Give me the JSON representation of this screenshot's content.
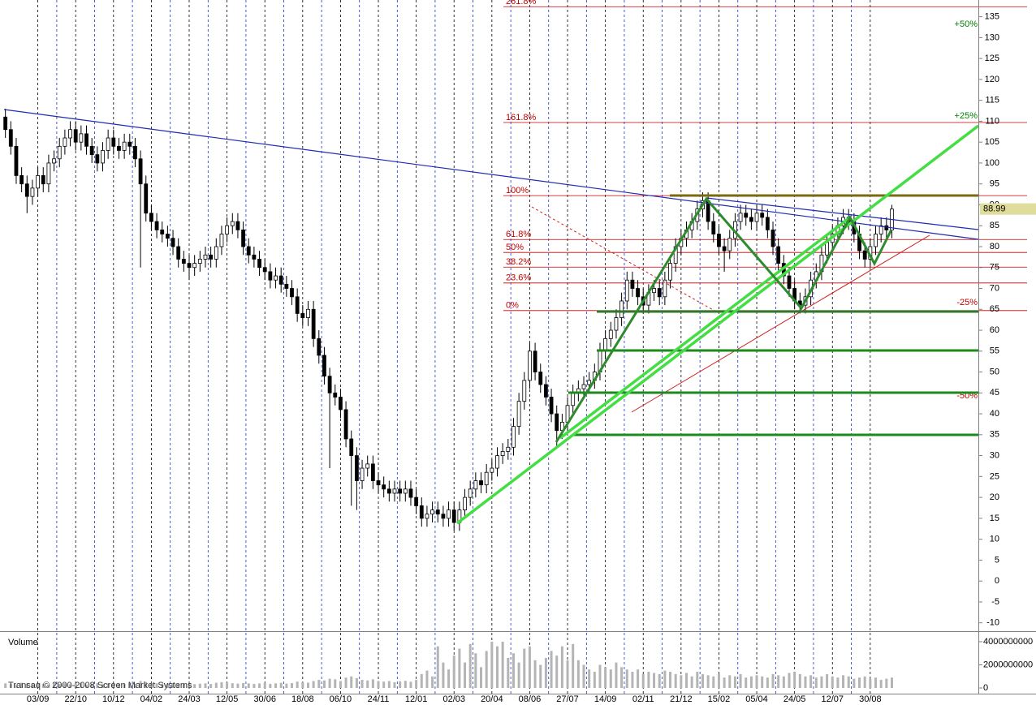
{
  "chart_data": {
    "type": "candlestick",
    "xlim": [
      -1,
      180
    ],
    "xticks": [
      {
        "value": 6,
        "label": "03/09"
      },
      {
        "value": 13,
        "label": "22/10"
      },
      {
        "value": 20,
        "label": "10/12"
      },
      {
        "value": 27,
        "label": "04/02"
      },
      {
        "value": 34,
        "label": "24/03"
      },
      {
        "value": 41,
        "label": "12/05"
      },
      {
        "value": 48,
        "label": "30/06"
      },
      {
        "value": 55,
        "label": "18/08"
      },
      {
        "value": 62,
        "label": "06/10"
      },
      {
        "value": 69,
        "label": "24/11"
      },
      {
        "value": 76,
        "label": "12/01"
      },
      {
        "value": 83,
        "label": "02/03"
      },
      {
        "value": 90,
        "label": "20/04"
      },
      {
        "value": 97,
        "label": "08/06"
      },
      {
        "value": 104,
        "label": "27/07"
      },
      {
        "value": 111,
        "label": "14/09"
      },
      {
        "value": 118,
        "label": "02/11"
      },
      {
        "value": 125,
        "label": "21/12"
      },
      {
        "value": 132,
        "label": "15/02"
      },
      {
        "value": 139,
        "label": "05/04"
      },
      {
        "value": 146,
        "label": "24/05"
      },
      {
        "value": 153,
        "label": "12/07"
      },
      {
        "value": 160,
        "label": "30/08"
      }
    ],
    "ylim": [
      -12,
      139
    ],
    "yticks": [
      -10,
      -5,
      0,
      5,
      10,
      15,
      20,
      25,
      30,
      35,
      40,
      45,
      50,
      55,
      60,
      65,
      70,
      75,
      80,
      85,
      90,
      95,
      100,
      105,
      110,
      115,
      120,
      125,
      130,
      135
    ],
    "up_color": "#ffffff",
    "down_color": "#000000",
    "open": [
      111,
      108,
      104,
      97,
      95,
      92,
      94,
      97,
      95,
      100,
      101,
      104,
      106,
      108,
      105,
      107,
      104,
      102,
      100,
      103,
      106,
      104,
      103,
      105,
      104,
      101,
      95,
      88,
      86,
      84,
      83,
      82,
      80,
      77,
      76,
      75,
      76,
      77,
      78,
      77,
      80,
      83,
      85,
      86,
      84,
      80,
      78,
      77,
      75,
      74,
      72,
      73,
      71,
      70,
      68,
      64,
      63,
      65,
      58,
      54,
      49,
      45,
      44,
      41,
      34,
      30,
      24,
      27,
      28,
      24,
      23,
      22,
      21,
      22,
      21,
      22,
      20,
      18,
      15,
      16,
      17,
      16,
      15,
      17,
      14,
      17,
      20,
      22,
      24,
      23,
      26,
      27,
      30,
      31,
      32,
      37,
      43,
      48,
      55,
      50,
      47,
      44,
      40,
      36,
      38,
      42,
      45,
      46,
      47,
      48,
      50,
      55,
      58,
      60,
      63,
      67,
      72,
      70,
      68,
      66,
      69,
      70,
      68,
      72,
      76,
      80,
      82,
      84,
      86,
      89,
      91,
      86,
      83,
      80,
      79,
      82,
      86,
      88,
      87,
      86,
      88,
      87,
      84,
      80,
      76,
      73,
      70,
      67,
      66,
      68,
      72,
      74,
      78,
      81,
      83,
      85,
      87,
      86,
      83,
      79,
      77,
      80,
      83,
      85,
      84
    ],
    "high": [
      113,
      110,
      106,
      99,
      97,
      96,
      99,
      99,
      102,
      103,
      106,
      108,
      110,
      110,
      109,
      109,
      106,
      104,
      105,
      108,
      108,
      106,
      107,
      107,
      106,
      103,
      97,
      90,
      88,
      86,
      85,
      84,
      82,
      79,
      78,
      78,
      79,
      80,
      80,
      82,
      85,
      87,
      88,
      88,
      86,
      82,
      80,
      79,
      77,
      76,
      75,
      75,
      73,
      72,
      70,
      66,
      67,
      67,
      60,
      56,
      51,
      47,
      46,
      43,
      36,
      32,
      29,
      30,
      30,
      26,
      25,
      24,
      24,
      24,
      24,
      24,
      22,
      20,
      18,
      19,
      19,
      18,
      19,
      19,
      19,
      22,
      24,
      26,
      26,
      28,
      29,
      32,
      33,
      34,
      39,
      45,
      50,
      57,
      57,
      52,
      49,
      46,
      42,
      40,
      44,
      47,
      48,
      49,
      50,
      52,
      57,
      60,
      62,
      65,
      69,
      74,
      74,
      72,
      70,
      71,
      72,
      72,
      74,
      78,
      82,
      84,
      86,
      88,
      91,
      93,
      93,
      88,
      85,
      82,
      84,
      88,
      90,
      90,
      89,
      90,
      90,
      89,
      86,
      82,
      78,
      75,
      72,
      69,
      70,
      74,
      76,
      80,
      83,
      85,
      87,
      89,
      89,
      88,
      85,
      81,
      82,
      85,
      87,
      87,
      90
    ],
    "low": [
      106,
      102,
      95,
      93,
      88,
      90,
      92,
      93,
      93,
      98,
      99,
      102,
      104,
      103,
      103,
      102,
      100,
      98,
      98,
      101,
      102,
      101,
      101,
      102,
      99,
      75,
      86,
      84,
      82,
      81,
      80,
      78,
      75,
      74,
      72,
      73,
      74,
      75,
      75,
      75,
      78,
      81,
      83,
      82,
      78,
      76,
      75,
      73,
      72,
      70,
      70,
      69,
      68,
      66,
      62,
      61,
      61,
      56,
      52,
      47,
      27,
      42,
      39,
      32,
      18,
      17,
      22,
      25,
      22,
      21,
      20,
      19,
      19,
      19,
      19,
      18,
      16,
      13,
      13,
      14,
      14,
      13,
      13,
      12,
      12,
      15,
      18,
      20,
      21,
      21,
      24,
      25,
      28,
      29,
      30,
      35,
      41,
      46,
      48,
      45,
      42,
      38,
      32,
      34,
      36,
      40,
      43,
      44,
      45,
      46,
      48,
      53,
      56,
      58,
      61,
      65,
      68,
      66,
      64,
      64,
      67,
      66,
      66,
      70,
      74,
      78,
      80,
      82,
      84,
      87,
      84,
      81,
      78,
      74,
      77,
      80,
      84,
      85,
      84,
      84,
      85,
      82,
      78,
      74,
      71,
      68,
      65,
      64,
      64,
      66,
      70,
      72,
      76,
      79,
      81,
      83,
      84,
      81,
      77,
      75,
      75,
      78,
      81,
      82,
      82
    ],
    "close": [
      108,
      104,
      97,
      95,
      92,
      94,
      97,
      95,
      100,
      101,
      104,
      106,
      108,
      105,
      107,
      104,
      102,
      100,
      103,
      106,
      104,
      103,
      105,
      104,
      101,
      95,
      88,
      86,
      84,
      83,
      82,
      80,
      77,
      76,
      75,
      76,
      77,
      78,
      77,
      80,
      83,
      85,
      86,
      84,
      80,
      78,
      77,
      75,
      74,
      72,
      73,
      71,
      70,
      68,
      64,
      63,
      65,
      58,
      54,
      49,
      45,
      44,
      41,
      34,
      30,
      24,
      27,
      28,
      24,
      23,
      22,
      21,
      22,
      21,
      22,
      20,
      18,
      15,
      16,
      17,
      16,
      15,
      17,
      14,
      17,
      20,
      22,
      24,
      23,
      26,
      27,
      30,
      31,
      32,
      37,
      43,
      48,
      55,
      50,
      47,
      44,
      40,
      36,
      38,
      42,
      45,
      46,
      47,
      48,
      50,
      55,
      58,
      60,
      63,
      67,
      72,
      70,
      68,
      66,
      69,
      70,
      68,
      72,
      76,
      80,
      82,
      84,
      86,
      89,
      91,
      86,
      83,
      80,
      79,
      82,
      86,
      88,
      87,
      86,
      88,
      87,
      84,
      80,
      76,
      73,
      70,
      67,
      66,
      68,
      72,
      74,
      78,
      81,
      83,
      85,
      87,
      86,
      83,
      79,
      77,
      80,
      83,
      85,
      84,
      88.99
    ],
    "last_price": 88.99,
    "fibonacci": [
      {
        "label": "261.8%",
        "value": 137.4
      },
      {
        "label": "161.8%",
        "value": 109.7
      },
      {
        "label": "100%",
        "value": 92.2
      },
      {
        "label": "61.8%",
        "value": 81.7
      },
      {
        "label": "50%",
        "value": 78.6
      },
      {
        "label": "38.2%",
        "value": 75.1
      },
      {
        "label": "23.6%",
        "value": 71.3
      },
      {
        "label": "0%",
        "value": 64.7
      }
    ],
    "fib_color": "#c00000",
    "percent_marks": [
      {
        "label": "+50%",
        "value": 133.2,
        "color": "#008000"
      },
      {
        "label": "+25%",
        "value": 111.2,
        "color": "#008000"
      },
      {
        "label": "-25%",
        "value": 66.6,
        "color": "#c00000"
      },
      {
        "label": "-50%",
        "value": 44.3,
        "color": "#c00000"
      }
    ],
    "volume": {
      "label": "Volume",
      "color": "#b4b4b4",
      "ylim": [
        -490000000,
        4770000000
      ],
      "yticks": [
        0,
        2000000000,
        4000000000
      ],
      "values": [
        400000000.0,
        350000000.0,
        300000000.0,
        450000000.0,
        380000000.0,
        320000000.0,
        410000000.0,
        360000000.0,
        300000000.0,
        420000000.0,
        350000000.0,
        400000000.0,
        320000000.0,
        380000000.0,
        440000000.0,
        300000000.0,
        360000000.0,
        400000000.0,
        330000000.0,
        390000000.0,
        420000000.0,
        340000000.0,
        370000000.0,
        410000000.0,
        350000000.0,
        600000000.0,
        520000000.0,
        450000000.0,
        400000000.0,
        360000000.0,
        380000000.0,
        420000000.0,
        350000000.0,
        390000000.0,
        440000000.0,
        330000000.0,
        370000000.0,
        400000000.0,
        340000000.0,
        450000000.0,
        500000000.0,
        460000000.0,
        410000000.0,
        380000000.0,
        430000000.0,
        400000000.0,
        350000000.0,
        390000000.0,
        420000000.0,
        360000000.0,
        400000000.0,
        450000000.0,
        380000000.0,
        420000000.0,
        550000000.0,
        500000000.0,
        460000000.0,
        600000000.0,
        700000000.0,
        650000000.0,
        800000000.0,
        750000000.0,
        600000000.0,
        900000000.0,
        1000000000.0,
        850000000.0,
        700000000.0,
        650000000.0,
        750000000.0,
        600000000.0,
        550000000.0,
        600000000.0,
        500000000.0,
        580000000.0,
        620000000.0,
        540000000.0,
        700000000.0,
        1200000000.0,
        1500000000.0,
        1000000000.0,
        3600000000.0,
        2200000000.0,
        1600000000.0,
        2800000000.0,
        3400000000.0,
        2200000000.0,
        3800000000.0,
        3000000000.0,
        1800000000.0,
        3200000000.0,
        4000000000.0,
        3600000000.0,
        4000000000.0,
        2600000000.0,
        3000000000.0,
        2200000000.0,
        3400000000.0,
        3600000000.0,
        2400000000.0,
        2000000000.0,
        2600000000.0,
        3200000000.0,
        2800000000.0,
        3600000000.0,
        2400000000.0,
        3800000000.0,
        2400000000.0,
        2000000000.0,
        1600000000.0,
        1400000000.0,
        2000000000.0,
        1800000000.0,
        1600000000.0,
        2200000000.0,
        1800000000.0,
        1600000000.0,
        1400000000.0,
        1600000000.0,
        1200000000.0,
        1400000000.0,
        1300000000.0,
        1200000000.0,
        1500000000.0,
        1400000000.0,
        1200000000.0,
        1100000000.0,
        1300000000.0,
        1000000000.0,
        1400000000.0,
        1200000000.0,
        1100000000.0,
        1000000000.0,
        1200000000.0,
        900000000.0,
        1100000000.0,
        1000000000.0,
        1200000000.0,
        900000000.0,
        1000000000.0,
        1100000000.0,
        1000000000.0,
        900000000.0,
        1200000000.0,
        1100000000.0,
        1000000000.0,
        1300000000.0,
        1400000000.0,
        1200000000.0,
        1000000000.0,
        1100000000.0,
        900000000.0,
        1000000000.0,
        1200000000.0,
        1000000000.0,
        900000000.0,
        1100000000.0,
        1000000000.0,
        800000000.0,
        900000000.0,
        1000000000.0,
        800000000.0,
        900000000.0,
        700000000.0,
        800000000.0,
        900000000.0
      ]
    },
    "copyright": "Transaq © 2000-2008 Screen Market Systems"
  }
}
